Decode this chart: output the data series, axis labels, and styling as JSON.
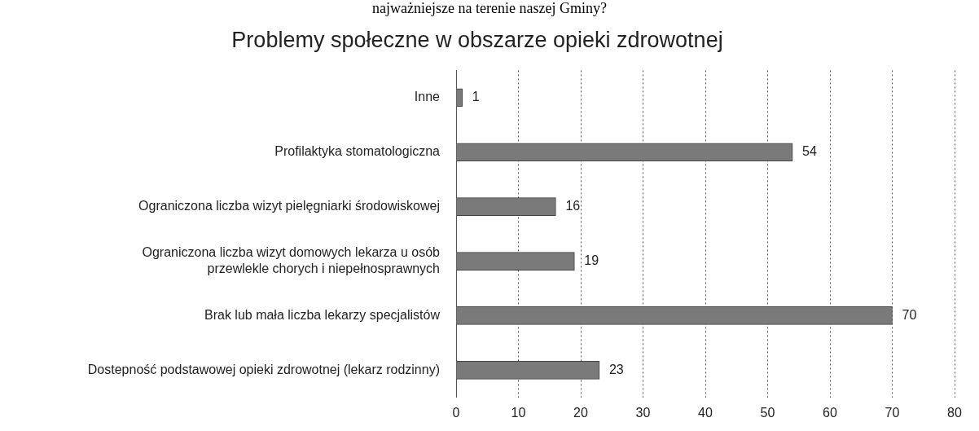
{
  "chart_data": {
    "type": "bar",
    "orientation": "horizontal",
    "title": "Problemy społeczne w obszarze opieki zdrowotnej",
    "annotations": [
      "najważniejsze na terenie naszej Gminy?"
    ],
    "categories": [
      "Inne",
      "Profilaktyka stomatologiczna",
      "Ograniczona liczba wizyt pielęgniarki środowiskowej",
      "Ograniczona liczba wizyt domowych lekarza u osób przewlekle chorych i niepełnosprawnych",
      "Brak lub mała liczba lekarzy specjalistów",
      "Dostepność podstawowej opieki zdrowotnej (lekarz rodzinny)"
    ],
    "values": [
      1,
      54,
      16,
      19,
      70,
      23
    ],
    "color": "#7a7a7a",
    "xlim": [
      0,
      80
    ],
    "xticks": [
      0,
      10,
      20,
      30,
      40,
      50,
      60,
      70,
      80
    ],
    "grid": "x",
    "legend": false,
    "data_labels": true
  }
}
